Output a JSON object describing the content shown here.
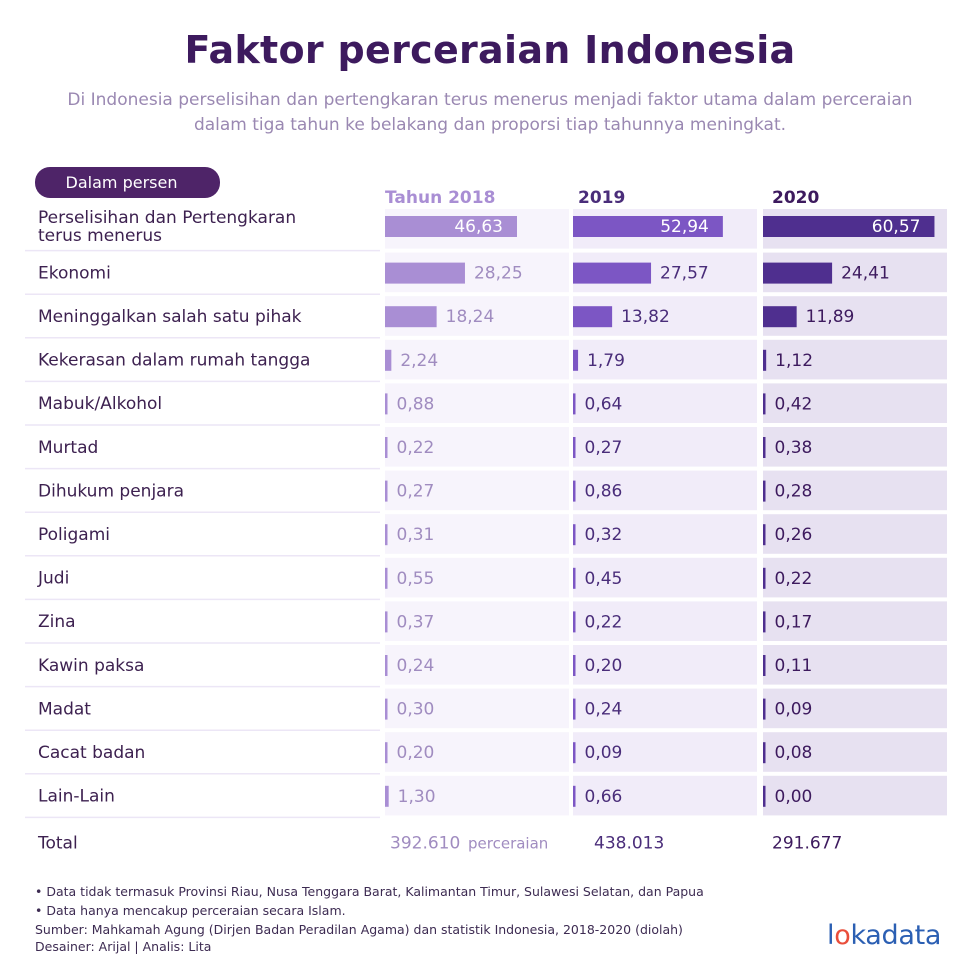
{
  "header": {
    "title": "Faktor perceraian Indonesia",
    "subtitle": "Di Indonesia perselisihan dan pertengkaran terus menerus menjadi faktor utama dalam perceraian dalam tiga tahun ke belakang dan proporsi tiap tahunnya meningkat."
  },
  "unit_label": "Dalam persen",
  "colors": {
    "title": "#3d1a5e",
    "bar_2018": "#a98ed4",
    "bar_2019": "#7c56c4",
    "bar_2020": "#4f2f8f",
    "row_band": "#ece6f6"
  },
  "chart_data": {
    "type": "bar",
    "orientation": "horizontal",
    "unit": "Dalam persen",
    "categories": [
      "Perselisihan dan Pertengkaran terus menerus",
      "Ekonomi",
      "Meninggalkan salah satu pihak",
      "Kekerasan dalam rumah tangga",
      "Mabuk/Alkohol",
      "Murtad",
      "Dihukum penjara",
      "Poligami",
      "Judi",
      "Zina",
      "Kawin paksa",
      "Madat",
      "Cacat badan",
      "Lain-Lain"
    ],
    "category_lines": [
      [
        "Perselisihan dan Pertengkaran",
        "terus menerus"
      ]
    ],
    "series": [
      {
        "name": "Tahun 2018",
        "values": [
          46.63,
          28.25,
          18.24,
          2.24,
          0.88,
          0.22,
          0.27,
          0.31,
          0.55,
          0.37,
          0.24,
          0.3,
          0.2,
          1.3
        ]
      },
      {
        "name": "2019",
        "values": [
          52.94,
          27.57,
          13.82,
          1.79,
          0.64,
          0.27,
          0.86,
          0.32,
          0.45,
          0.22,
          0.2,
          0.24,
          0.09,
          0.66
        ]
      },
      {
        "name": "2020",
        "values": [
          60.57,
          24.41,
          11.89,
          1.12,
          0.42,
          0.38,
          0.28,
          0.26,
          0.22,
          0.17,
          0.11,
          0.09,
          0.08,
          0.0
        ]
      }
    ],
    "value_labels": [
      [
        "46,63",
        "28,25",
        "18,24",
        "2,24",
        "0,88",
        "0,22",
        "0,27",
        "0,31",
        "0,55",
        "0,37",
        "0,24",
        "0,30",
        "0,20",
        "1,30"
      ],
      [
        "52,94",
        "27,57",
        "13,82",
        "1,79",
        "0,64",
        "0,27",
        "0,86",
        "0,32",
        "0,45",
        "0,22",
        "0,20",
        "0,24",
        "0,09",
        "0,66"
      ],
      [
        "60,57",
        "24,41",
        "11,89",
        "1,12",
        "0,42",
        "0,38",
        "0,28",
        "0,26",
        "0,22",
        "0,17",
        "0,11",
        "0,09",
        "0,08",
        "0,00"
      ]
    ],
    "xlim": [
      0,
      65
    ],
    "totals": {
      "label": "Total",
      "values": [
        "392.610",
        "438.013",
        "291.677"
      ],
      "suffix": "perceraian"
    }
  },
  "notes": [
    "Data tidak termasuk Provinsi Riau, Nusa Tenggara Barat, Kalimantan Timur, Sulawesi  Selatan, dan Papua",
    "Data hanya mencakup perceraian secara Islam."
  ],
  "source": "Sumber: Mahkamah Agung (Dirjen Badan Peradilan Agama) dan statistik Indonesia, 2018-2020 (diolah)",
  "credits": "Desainer: Arijal | Analis: Lita",
  "logo": {
    "pre": "l",
    "dot": "o",
    "post": "kadata"
  }
}
